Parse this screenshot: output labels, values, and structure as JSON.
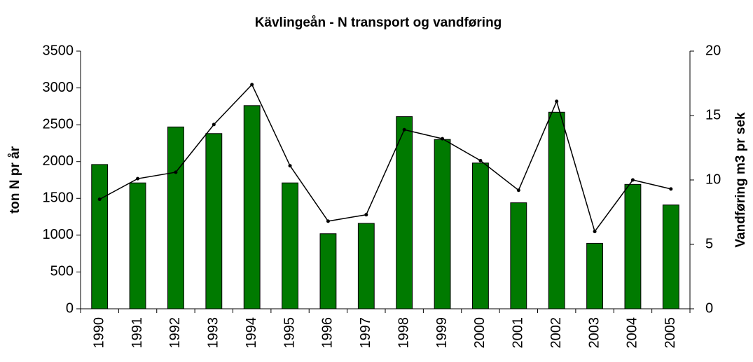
{
  "chart_data": {
    "type": "bar-line",
    "title": "Kävlingeån - N transport og vandføring",
    "y_label": "ton N pr år",
    "y2_label": "Vandføring m3 pr sek",
    "categories": [
      "1990",
      "1991",
      "1992",
      "1993",
      "1994",
      "1995",
      "1996",
      "1997",
      "1998",
      "1999",
      "2000",
      "2001",
      "2002",
      "2003",
      "2004",
      "2005"
    ],
    "series": [
      {
        "type": "bar",
        "color": "#007a00",
        "values": [
          1960,
          1710,
          2470,
          2380,
          2760,
          1710,
          1020,
          1160,
          2610,
          2300,
          1980,
          1440,
          2670,
          890,
          1690,
          1410
        ]
      },
      {
        "type": "line",
        "axis": "y2",
        "color": "#000000",
        "values": [
          8.5,
          10.1,
          10.6,
          14.3,
          17.4,
          11.1,
          6.8,
          7.3,
          13.9,
          13.2,
          11.5,
          9.2,
          16.1,
          6.0,
          10.0,
          9.3
        ]
      }
    ],
    "ylim": [
      0,
      3500
    ],
    "yticks": [
      0,
      500,
      1000,
      1500,
      2000,
      2500,
      3000,
      3500
    ],
    "y2lim": [
      0,
      20
    ],
    "y2ticks": [
      0,
      5,
      10,
      15,
      20
    ],
    "grid": false
  }
}
